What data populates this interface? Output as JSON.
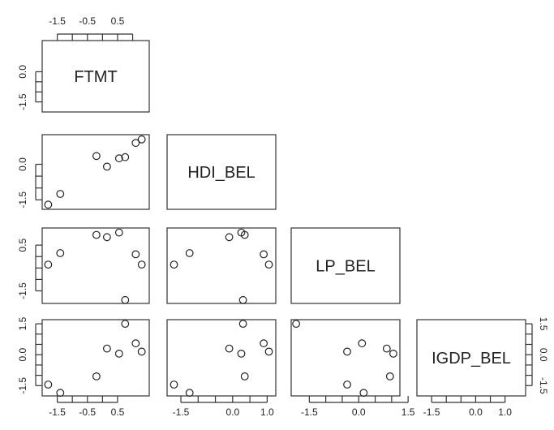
{
  "chart_data": {
    "type": "scatter",
    "variables": [
      "FTMT",
      "HDI_BEL",
      "LP_BEL",
      "IGDP_BEL"
    ],
    "layout": "lower-triangle-scatter-matrix",
    "axes": {
      "FTMT": {
        "ticks": [
          -1.5,
          -0.5,
          0.5
        ],
        "tick_labels": [
          "-1.5",
          "-0.5",
          "0.5"
        ]
      },
      "HDI_BEL": {
        "ticks": [
          -1.5,
          0.0,
          1.0
        ],
        "tick_labels": [
          "-1.5",
          "0.0",
          "1.0"
        ]
      },
      "LP_BEL": {
        "ticks": [
          -1.5,
          0.5
        ],
        "tick_labels": [
          "-1.5",
          "0.5"
        ]
      },
      "IGDP_BEL": {
        "ticks": [
          -1.5,
          0.0,
          1.5
        ],
        "tick_labels": [
          "-1.5",
          "0.0",
          "1.5"
        ]
      }
    },
    "x_axis_ticks": {
      "FTMT": [
        "-1.5",
        "-0.5",
        "0.5"
      ],
      "HDI_BEL": [
        "-1.5",
        "0.0",
        "1.0"
      ],
      "LP_BEL": [
        "-1.5",
        "0.0",
        "1.5"
      ],
      "IGDP_BEL": [
        "-1.5",
        "0.0",
        "1.0"
      ]
    },
    "y_axis_ticks": {
      "FTMT": [
        "0.0",
        "-1.5"
      ],
      "HDI_BEL": [
        "0.0",
        "-1.5"
      ],
      "LP_BEL": [
        "0.5",
        "-1.5"
      ],
      "IGDP_BEL": [
        "1.5",
        "0.0",
        "-1.5"
      ]
    },
    "right_axis_ticks": {
      "IGDP_BEL": [
        "1.5",
        "0.0",
        "-1.5"
      ]
    },
    "observations": {
      "FTMT": [
        -1.8,
        -1.4,
        0.15,
        0.55,
        1.1,
        1.3,
        -0.2,
        0.75
      ],
      "HDI_BEL": [
        -1.7,
        -1.25,
        -0.1,
        0.25,
        0.9,
        1.05,
        0.35,
        0.3
      ],
      "LP_BEL": [
        -0.35,
        0.15,
        0.85,
        1.05,
        0.1,
        -0.35,
        0.95,
        -1.9
      ],
      "IGDP_BEL": [
        -1.45,
        -1.85,
        0.3,
        0.05,
        0.55,
        0.15,
        -1.05,
        1.5
      ]
    },
    "grid": false,
    "legend": "none"
  }
}
